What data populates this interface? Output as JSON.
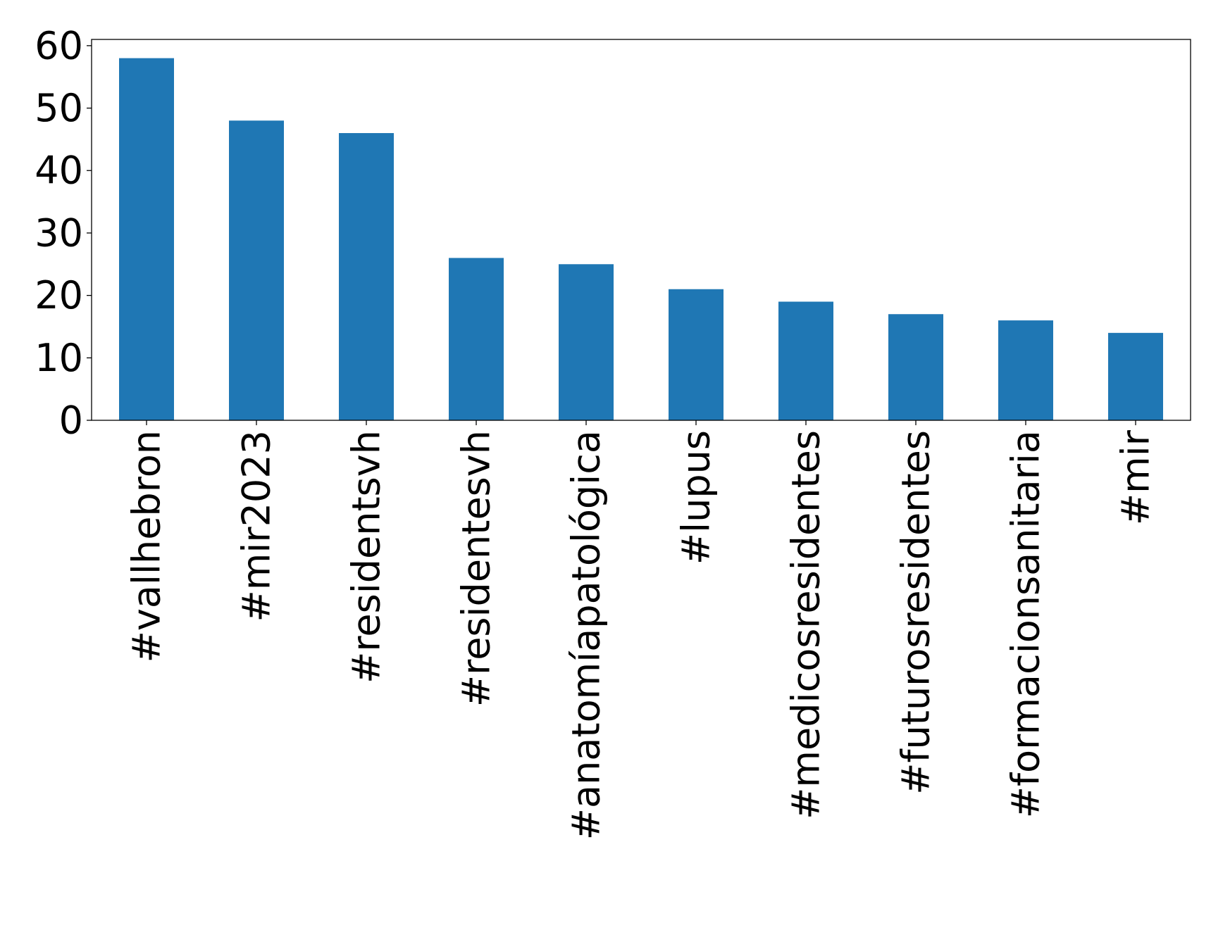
{
  "chart_data": {
    "type": "bar",
    "title": "",
    "xlabel": "",
    "ylabel": "",
    "categories": [
      "#vallhebron",
      "#mir2023",
      "#residentsvh",
      "#residentesvh",
      "#anatomíapatológica",
      "#lupus",
      "#medicosresidentes",
      "#futurosresidentes",
      "#formacionsanitaria",
      "#mir"
    ],
    "values": [
      58,
      48,
      46,
      26,
      25,
      21,
      19,
      17,
      16,
      14
    ],
    "ylim": [
      0,
      61
    ],
    "yticks": [
      0,
      10,
      20,
      30,
      40,
      50,
      60
    ],
    "grid": false,
    "bar_color": "#1f77b4"
  }
}
